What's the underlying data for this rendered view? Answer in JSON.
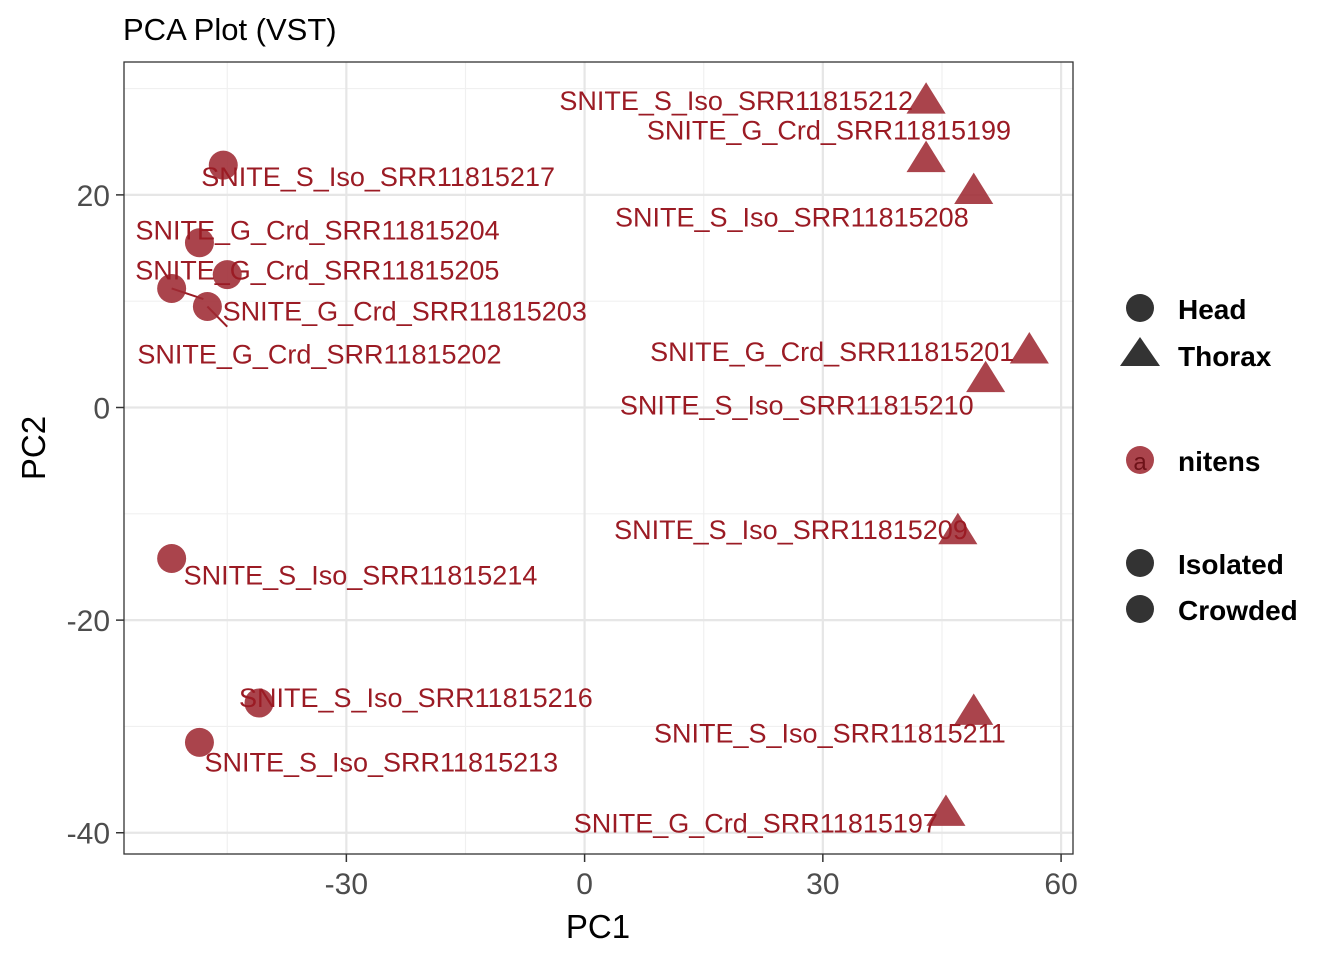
{
  "chart_data": {
    "type": "scatter",
    "title": "PCA Plot (VST)",
    "xlabel": "PC1",
    "ylabel": "PC2",
    "xlim": [
      -58,
      61.5
    ],
    "ylim": [
      -42,
      32.5
    ],
    "x_ticks": [
      -30,
      0,
      30,
      60
    ],
    "x_tick_labels": [
      "-30",
      "0",
      "30",
      "60"
    ],
    "y_ticks": [
      -40,
      -20,
      0,
      20
    ],
    "y_tick_labels": [
      "-40",
      "-20",
      "0",
      "20"
    ],
    "x_minor": [
      -45,
      -15,
      15,
      45
    ],
    "y_minor": [
      -30,
      -10,
      10,
      30
    ],
    "grid": true,
    "colors": {
      "point": "#9e2a33",
      "label": "#9b1b24",
      "legend_symbol": "#333333"
    },
    "points": [
      {
        "name": "SNITE_S_Iso_SRR11815212",
        "pc1": 43.0,
        "pc2": 29.0,
        "tissue": "Thorax",
        "label_anchor": "end",
        "label_dx": -13,
        "label_dy": 2
      },
      {
        "name": "SNITE_G_Crd_SRR11815199",
        "pc1": 43.0,
        "pc2": 23.5,
        "tissue": "Thorax",
        "label_anchor": "end",
        "label_dx": 85,
        "label_dy": -27
      },
      {
        "name": "SNITE_S_Iso_SRR11815208",
        "pc1": 49.0,
        "pc2": 20.5,
        "tissue": "Thorax",
        "label_anchor": "end",
        "label_dx": -5,
        "label_dy": 28
      },
      {
        "name": "SNITE_G_Crd_SRR11815201",
        "pc1": 56.0,
        "pc2": 5.5,
        "tissue": "Thorax",
        "label_anchor": "end",
        "label_dx": -15,
        "label_dy": 3
      },
      {
        "name": "SNITE_S_Iso_SRR11815210",
        "pc1": 50.5,
        "pc2": 2.8,
        "tissue": "Thorax",
        "label_anchor": "end",
        "label_dx": -12,
        "label_dy": 28
      },
      {
        "name": "SNITE_S_Iso_SRR11815209",
        "pc1": 47.0,
        "pc2": -11.5,
        "tissue": "Thorax",
        "label_anchor": "end",
        "label_dx": 10,
        "label_dy": 0
      },
      {
        "name": "SNITE_S_Iso_SRR11815211",
        "pc1": 49.0,
        "pc2": -28.5,
        "tissue": "Thorax",
        "label_anchor": "end",
        "label_dx": 32,
        "label_dy": 23
      },
      {
        "name": "SNITE_G_Crd_SRR11815197",
        "pc1": 45.5,
        "pc2": -38.0,
        "tissue": "Thorax",
        "label_anchor": "end",
        "label_dx": -8,
        "label_dy": 12
      },
      {
        "name": "SNITE_S_Iso_SRR11815217",
        "pc1": -45.5,
        "pc2": 22.8,
        "tissue": "Head",
        "label_anchor": "start",
        "label_dx": -22,
        "label_dy": 12
      },
      {
        "name": "SNITE_G_Crd_SRR11815204",
        "pc1": -48.5,
        "pc2": 15.5,
        "tissue": "Head",
        "label_anchor": "start",
        "label_dx": -64,
        "label_dy": -12
      },
      {
        "name": "SNITE_G_Crd_SRR11815205",
        "pc1": -45.0,
        "pc2": 12.5,
        "tissue": "Head",
        "label_anchor": "start",
        "label_dx": -92,
        "label_dy": -4
      },
      {
        "name": "SNITE_G_Crd_SRR11815203",
        "pc1": -52.0,
        "pc2": 11.2,
        "tissue": "Head",
        "label_anchor": "start",
        "label_dx": 51,
        "label_dy": 23
      },
      {
        "name": "SNITE_G_Crd_SRR11815202",
        "pc1": -47.5,
        "pc2": 9.5,
        "tissue": "Head",
        "label_anchor": "start",
        "label_dx": -70,
        "label_dy": 48
      },
      {
        "name": "SNITE_S_Iso_SRR11815214",
        "pc1": -52.0,
        "pc2": -14.2,
        "tissue": "Head",
        "label_anchor": "start",
        "label_dx": 12,
        "label_dy": 17
      },
      {
        "name": "SNITE_S_Iso_SRR11815216",
        "pc1": -41.0,
        "pc2": -27.8,
        "tissue": "Head",
        "label_anchor": "start",
        "label_dx": -20,
        "label_dy": -5
      },
      {
        "name": "SNITE_S_Iso_SRR11815213",
        "pc1": -48.5,
        "pc2": -31.5,
        "tissue": "Head",
        "label_anchor": "start",
        "label_dx": 5,
        "label_dy": 20
      }
    ],
    "connectors": [
      {
        "pc1": -52.0,
        "pc2": 11.2,
        "to_pc1": -48.0,
        "to_pc2": 10.2
      },
      {
        "pc1": -47.5,
        "pc2": 9.5,
        "to_pc1": -45.0,
        "to_pc2": 7.6
      }
    ],
    "legend": {
      "placement": "right",
      "shape_items": [
        {
          "label": "Head",
          "shape": "circle"
        },
        {
          "label": "Thorax",
          "shape": "triangle"
        }
      ],
      "color_items": [
        {
          "label": "nitens",
          "glyph": "a"
        }
      ],
      "group_items": [
        {
          "label": "Isolated",
          "shape": "circle"
        },
        {
          "label": "Crowded",
          "shape": "circle"
        }
      ]
    }
  }
}
